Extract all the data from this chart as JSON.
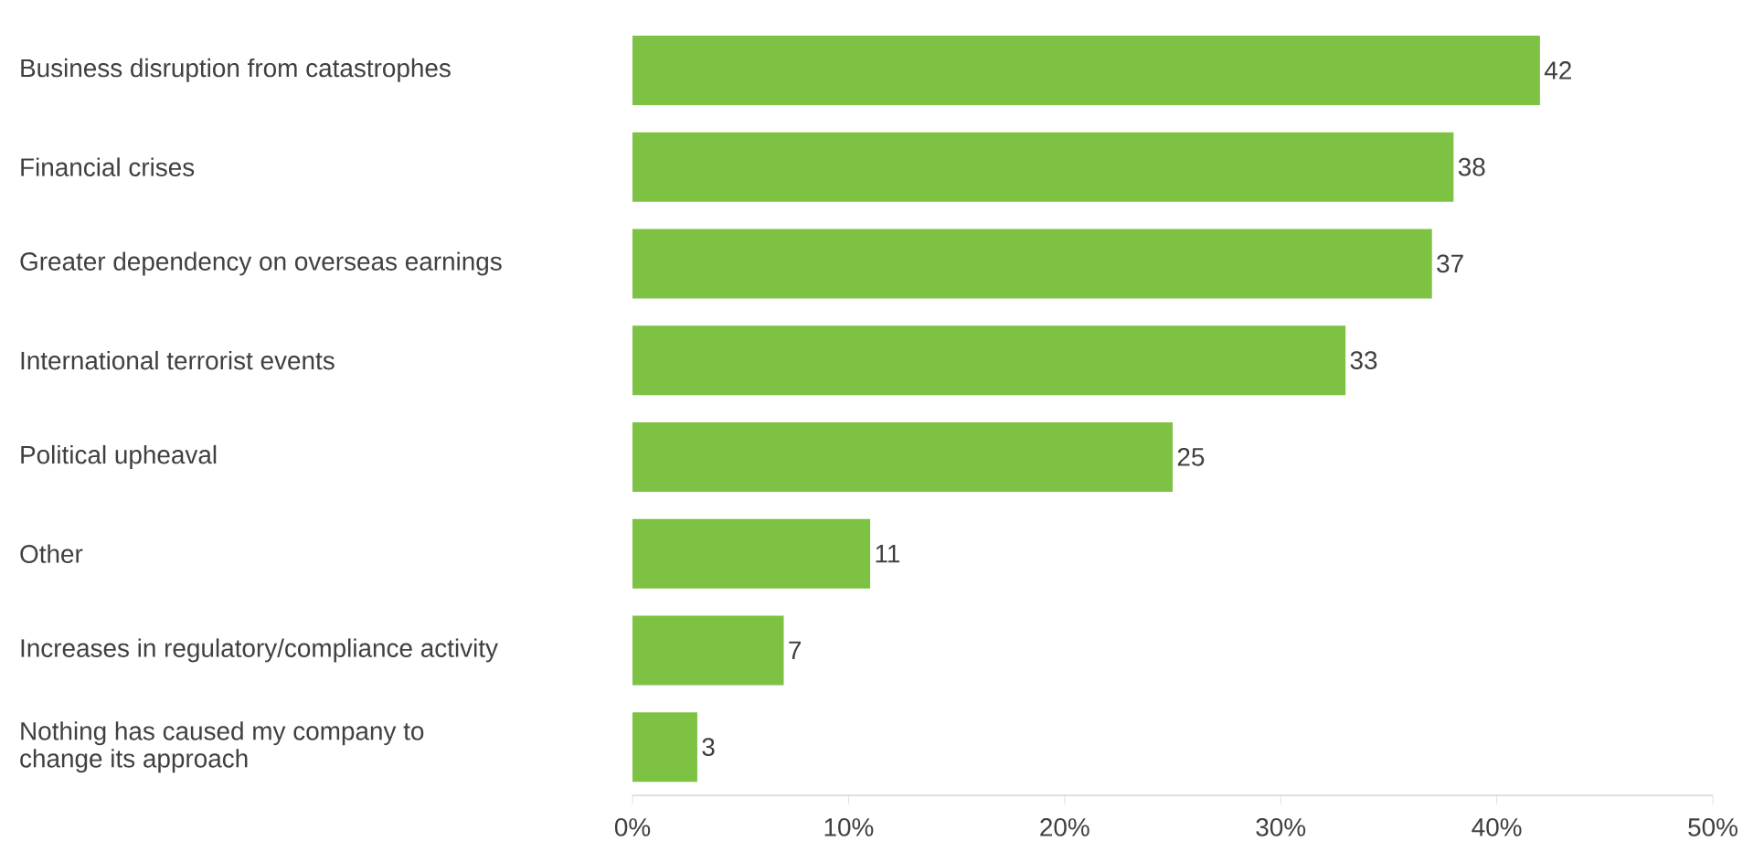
{
  "chart_data": {
    "type": "bar",
    "orientation": "horizontal",
    "categories": [
      "Business disruption from catastrophes",
      "Financial crises",
      "Greater dependency on overseas earnings",
      "International terrorist events",
      "Political upheaval",
      "Other",
      "Increases in regulatory/compliance activity",
      "Nothing has caused my company to change its approach"
    ],
    "values": [
      42,
      38,
      37,
      33,
      25,
      11,
      7,
      3
    ],
    "color": "#7dc242",
    "xlim": [
      0,
      50
    ],
    "xticks": [
      {
        "value": 0,
        "label": "0%"
      },
      {
        "value": 10,
        "label": "10%"
      },
      {
        "value": 20,
        "label": "20%"
      },
      {
        "value": 30,
        "label": "30%"
      },
      {
        "value": 40,
        "label": "40%"
      },
      {
        "value": 50,
        "label": "50%"
      }
    ],
    "data_labels": true
  }
}
